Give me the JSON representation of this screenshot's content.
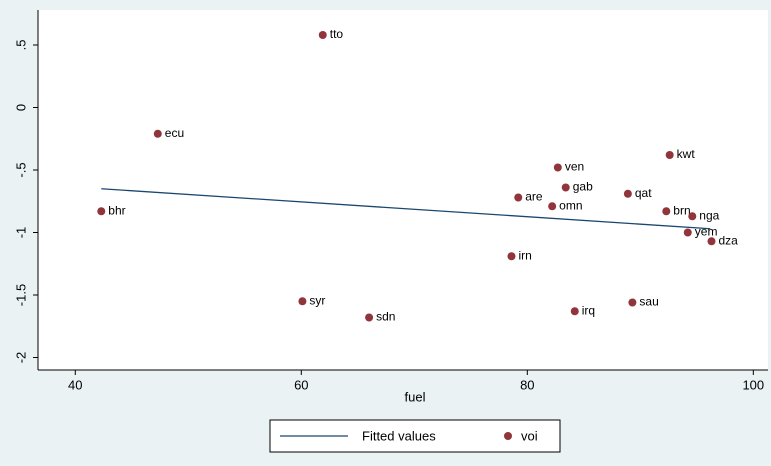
{
  "chart_data": {
    "type": "scatter",
    "x_label": "fuel",
    "xlim": [
      36.7,
      101.3
    ],
    "xticks": [
      40,
      60,
      80,
      100
    ],
    "ylim": [
      -2.1,
      0.78
    ],
    "yticks": [
      {
        "value": 0.5,
        "label": ".5"
      },
      0,
      {
        "value": -0.5,
        "label": "-.5"
      },
      -1,
      -1.5,
      -2
    ],
    "series": [
      {
        "name": "Fitted values",
        "type": "line",
        "color": "#1a476f",
        "x": [
          42.3,
          96.2
        ],
        "values": [
          -0.65,
          -0.97
        ]
      },
      {
        "name": "voi",
        "type": "scatter",
        "color": "#90353b",
        "x": [
          61.9,
          47.3,
          42.3,
          92.6,
          82.7,
          83.4,
          88.9,
          79.2,
          82.2,
          92.3,
          94.6,
          94.2,
          96.3,
          78.6,
          60.1,
          66.0,
          84.2,
          89.3
        ],
        "values": [
          0.58,
          -0.21,
          -0.83,
          -0.38,
          -0.48,
          -0.64,
          -0.69,
          -0.72,
          -0.79,
          -0.83,
          -0.87,
          -1.0,
          -1.07,
          -1.19,
          -1.55,
          -1.68,
          -1.63,
          -1.56
        ],
        "point_labels": [
          "tto",
          "ecu",
          "bhr",
          "kwt",
          "ven",
          "gab",
          "qat",
          "are",
          "omn",
          "brn",
          "nga",
          "yem",
          "dza",
          "irn",
          "syr",
          "sdn",
          "irq",
          "sau"
        ]
      }
    ]
  }
}
